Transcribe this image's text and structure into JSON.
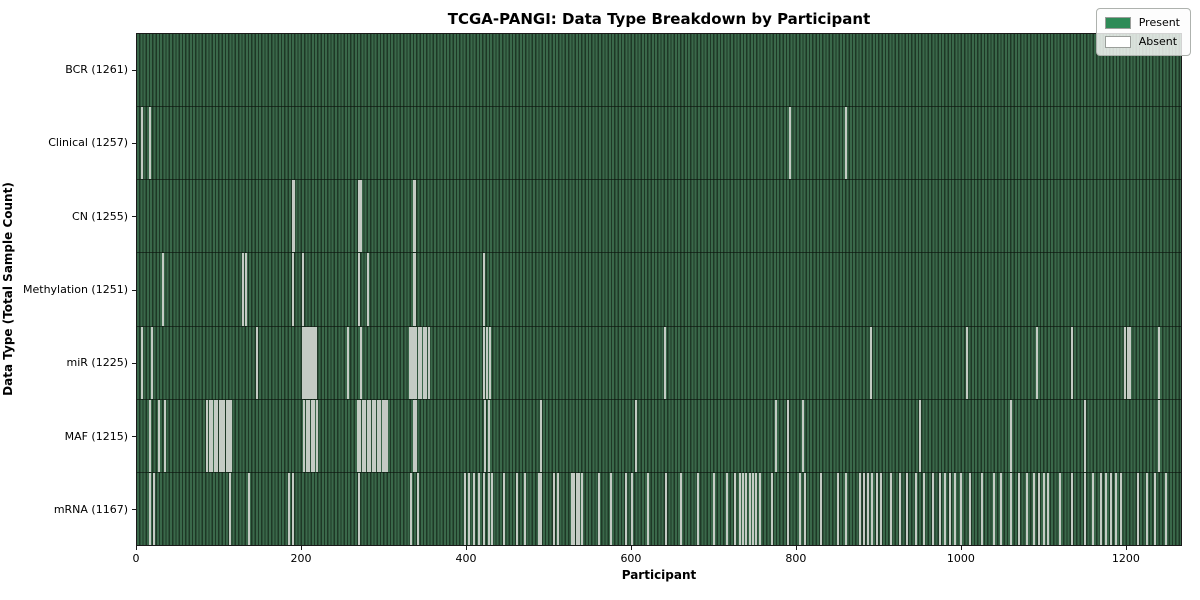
{
  "title": "TCGA-PANGI: Data Type Breakdown by Participant",
  "chart_data": {
    "type": "heatmap",
    "title": "TCGA-PANGI: Data Type Breakdown by Participant",
    "xlabel": "Participant",
    "ylabel": "Data Type (Total Sample Count)",
    "x_ticks": [
      0,
      200,
      400,
      600,
      800,
      1000,
      1200
    ],
    "x_max_units": 1268,
    "total_participants": 1261,
    "grid": false,
    "legend": {
      "position": "upper right",
      "entries": [
        {
          "label": "Present",
          "color": "#2e8b57"
        },
        {
          "label": "Absent",
          "color": "#ffffff"
        }
      ]
    },
    "colors": {
      "present_stripe_light": "#3a684a",
      "present_stripe_dark": "#1e3826",
      "absent_line": "#c4cbc4",
      "axis": "#1a1a1a"
    },
    "rows": [
      {
        "data_type": "BCR",
        "label": "BCR (1261)",
        "present_count": 1261,
        "absent_participants": []
      },
      {
        "data_type": "Clinical",
        "label": "Clinical (1257)",
        "present_count": 1257,
        "absent_participants": [
          5,
          15,
          792,
          860
        ]
      },
      {
        "data_type": "CN",
        "label": "CN (1255)",
        "present_count": 1255,
        "absent_participants": [
          188,
          190,
          269,
          271,
          335,
          337
        ]
      },
      {
        "data_type": "Methylation",
        "label": "Methylation (1251)",
        "present_count": 1251,
        "absent_participants": [
          30,
          128,
          131,
          188,
          200,
          269,
          279,
          335,
          337,
          420
        ]
      },
      {
        "data_type": "miR",
        "label": "miR (1225)",
        "present_count": 1225,
        "absent_participants": [
          5,
          17,
          144,
          200,
          202,
          204,
          206,
          208,
          210,
          212,
          214,
          216,
          255,
          271,
          330,
          332,
          334,
          336,
          338,
          341,
          344,
          347,
          350,
          353,
          420,
          424,
          428,
          640,
          890,
          1007,
          1092,
          1135,
          1199,
          1202,
          1205,
          1240
        ]
      },
      {
        "data_type": "MAF",
        "label": "MAF (1215)",
        "present_count": 1215,
        "absent_participants": [
          15,
          25,
          33,
          84,
          87,
          90,
          93,
          96,
          99,
          102,
          105,
          108,
          111,
          113,
          202,
          205,
          208,
          211,
          214,
          217,
          267,
          270,
          273,
          276,
          279,
          282,
          285,
          288,
          291,
          294,
          297,
          300,
          303,
          335,
          338,
          422,
          426,
          490,
          605,
          775,
          790,
          808,
          950,
          1060,
          1150,
          1240
        ]
      },
      {
        "data_type": "mRNA",
        "label": "mRNA (1167)",
        "present_count": 1167,
        "absent_participants": [
          15,
          20,
          112,
          135,
          184,
          188,
          269,
          332,
          340,
          397,
          402,
          408,
          414,
          420,
          426,
          430,
          445,
          460,
          470,
          487,
          490,
          505,
          510,
          527,
          530,
          533,
          536,
          539,
          560,
          575,
          593,
          600,
          620,
          641,
          660,
          680,
          700,
          715,
          725,
          731,
          735,
          739,
          743,
          747,
          751,
          755,
          770,
          790,
          804,
          810,
          830,
          850,
          860,
          877,
          882,
          887,
          892,
          897,
          902,
          915,
          925,
          934,
          945,
          955,
          965,
          974,
          980,
          986,
          992,
          999,
          1010,
          1025,
          1040,
          1048,
          1060,
          1070,
          1080,
          1088,
          1094,
          1100,
          1105,
          1120,
          1135,
          1150,
          1160,
          1170,
          1176,
          1182,
          1188,
          1194,
          1215,
          1225,
          1235,
          1248
        ]
      }
    ]
  }
}
